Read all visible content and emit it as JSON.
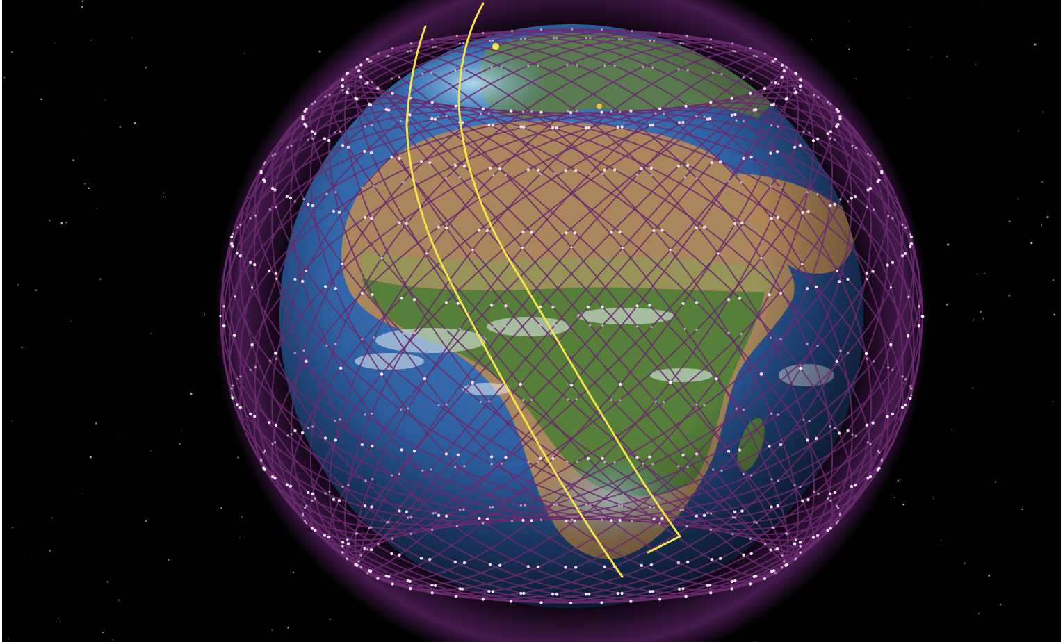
{
  "scene": {
    "subject": "earth-globe",
    "background_color": "#000000",
    "colors": {
      "ocean_deep": "#1b3f78",
      "ocean_light": "#3e7fc8",
      "desert": "#b48a5e",
      "savanna": "#7f8f4a",
      "forest": "#3f7a34",
      "cloud": "#e6eef2",
      "mesh_line": "#6a2a6e",
      "mesh_glow": "#8e3aa0",
      "satellite_dot": "#f2e8f2",
      "trace_line": "#f3e24a",
      "star": "#cfcfcf"
    },
    "icons": [
      "globe-icon",
      "satellite-icon",
      "star-icon"
    ]
  }
}
